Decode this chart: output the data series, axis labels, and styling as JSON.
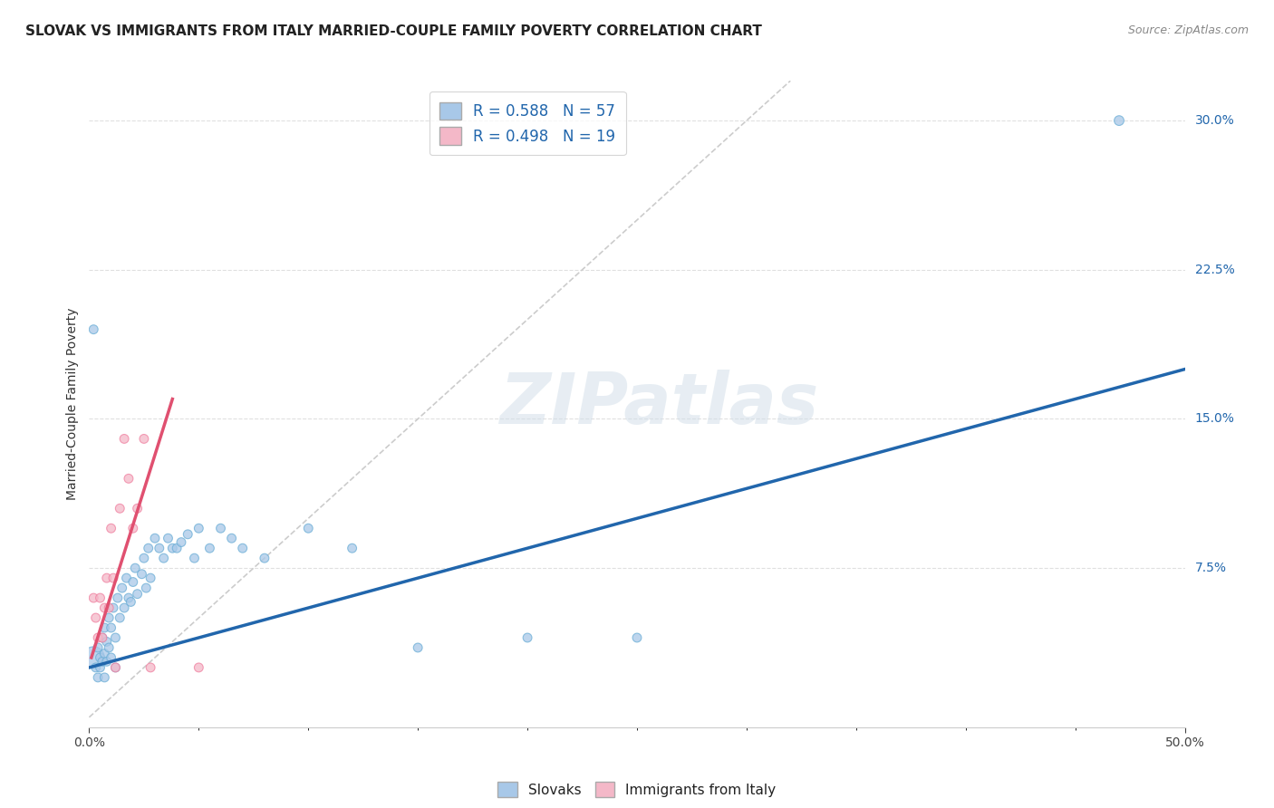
{
  "title": "SLOVAK VS IMMIGRANTS FROM ITALY MARRIED-COUPLE FAMILY POVERTY CORRELATION CHART",
  "source": "Source: ZipAtlas.com",
  "ylabel": "Married-Couple Family Poverty",
  "watermark": "ZIPatlas",
  "blue_color": "#a8c8e8",
  "blue_color_edge": "#6baed6",
  "pink_color": "#f4b8c8",
  "pink_color_edge": "#f080a0",
  "blue_line_color": "#2166ac",
  "pink_line_color": "#e05070",
  "diagonal_color": "#cccccc",
  "legend_R1": "0.588",
  "legend_N1": "57",
  "legend_R2": "0.498",
  "legend_N2": "19",
  "xlim": [
    0.0,
    0.5
  ],
  "ylim": [
    -0.005,
    0.32
  ],
  "blue_scatter_x": [
    0.002,
    0.003,
    0.004,
    0.004,
    0.005,
    0.005,
    0.006,
    0.006,
    0.007,
    0.007,
    0.007,
    0.008,
    0.008,
    0.009,
    0.009,
    0.01,
    0.01,
    0.011,
    0.012,
    0.012,
    0.013,
    0.014,
    0.015,
    0.016,
    0.017,
    0.018,
    0.019,
    0.02,
    0.021,
    0.022,
    0.024,
    0.025,
    0.026,
    0.027,
    0.028,
    0.03,
    0.032,
    0.034,
    0.036,
    0.038,
    0.04,
    0.042,
    0.045,
    0.048,
    0.05,
    0.055,
    0.06,
    0.065,
    0.07,
    0.08,
    0.1,
    0.12,
    0.15,
    0.2,
    0.25,
    0.47,
    0.002
  ],
  "blue_scatter_y": [
    0.03,
    0.025,
    0.035,
    0.02,
    0.03,
    0.025,
    0.04,
    0.028,
    0.045,
    0.032,
    0.02,
    0.038,
    0.028,
    0.05,
    0.035,
    0.045,
    0.03,
    0.055,
    0.04,
    0.025,
    0.06,
    0.05,
    0.065,
    0.055,
    0.07,
    0.06,
    0.058,
    0.068,
    0.075,
    0.062,
    0.072,
    0.08,
    0.065,
    0.085,
    0.07,
    0.09,
    0.085,
    0.08,
    0.09,
    0.085,
    0.085,
    0.088,
    0.092,
    0.08,
    0.095,
    0.085,
    0.095,
    0.09,
    0.085,
    0.08,
    0.095,
    0.085,
    0.035,
    0.04,
    0.04,
    0.3,
    0.195
  ],
  "blue_scatter_sizes": [
    300,
    50,
    50,
    50,
    50,
    50,
    50,
    50,
    50,
    50,
    50,
    50,
    50,
    50,
    50,
    50,
    50,
    50,
    50,
    50,
    50,
    50,
    50,
    50,
    50,
    50,
    50,
    50,
    50,
    50,
    50,
    50,
    50,
    50,
    50,
    50,
    50,
    50,
    50,
    50,
    50,
    50,
    50,
    50,
    50,
    50,
    50,
    50,
    50,
    50,
    50,
    50,
    50,
    50,
    50,
    60,
    50
  ],
  "pink_scatter_x": [
    0.002,
    0.003,
    0.004,
    0.005,
    0.006,
    0.007,
    0.008,
    0.009,
    0.01,
    0.011,
    0.012,
    0.014,
    0.016,
    0.018,
    0.02,
    0.022,
    0.025,
    0.028,
    0.05
  ],
  "pink_scatter_y": [
    0.06,
    0.05,
    0.04,
    0.06,
    0.04,
    0.055,
    0.07,
    0.055,
    0.095,
    0.07,
    0.025,
    0.105,
    0.14,
    0.12,
    0.095,
    0.105,
    0.14,
    0.025,
    0.025
  ],
  "pink_scatter_sizes": [
    50,
    50,
    50,
    50,
    50,
    50,
    50,
    50,
    50,
    50,
    50,
    50,
    50,
    50,
    50,
    50,
    50,
    50,
    50
  ],
  "blue_line_x": [
    0.0,
    0.5
  ],
  "blue_line_y": [
    0.025,
    0.175
  ],
  "pink_line_x": [
    0.001,
    0.038
  ],
  "pink_line_y": [
    0.03,
    0.16
  ],
  "diag_line_x": [
    0.0,
    0.32
  ],
  "diag_line_y": [
    0.0,
    0.32
  ],
  "ytick_vals": [
    0.075,
    0.15,
    0.225,
    0.3
  ],
  "ytick_labels": [
    "7.5%",
    "15.0%",
    "22.5%",
    "30.0%"
  ],
  "grid_color": "#e0e0e0",
  "title_fontsize": 11,
  "label_fontsize": 10
}
